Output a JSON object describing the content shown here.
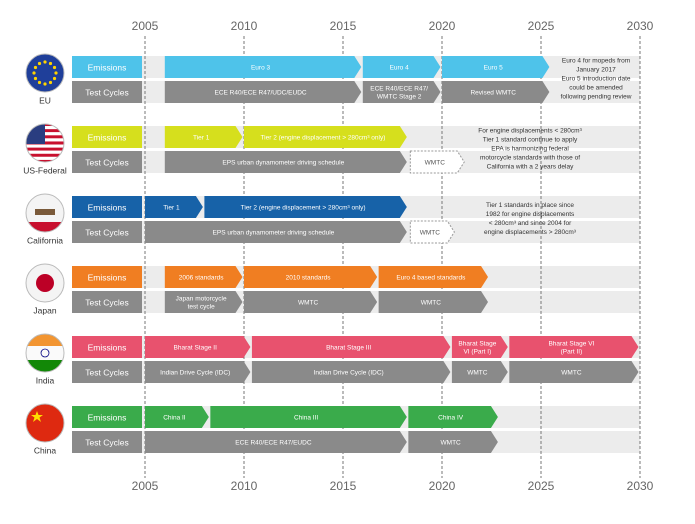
{
  "axis": {
    "xticks": [
      2005,
      2010,
      2015,
      2020,
      2025,
      2030
    ]
  },
  "regions": [
    {
      "name": "EU",
      "rows": [
        {
          "label": "Emissions",
          "color": "#4ec3ea",
          "bars": [
            {
              "label": [
                "Euro 3"
              ],
              "start": 2006,
              "end": 2016
            },
            {
              "label": [
                "Euro 4"
              ],
              "start": 2016,
              "end": 2020
            },
            {
              "label": [
                "Euro 5"
              ],
              "start": 2020,
              "end": 2025.5
            }
          ]
        },
        {
          "label": "Test Cycles",
          "color": "#8a8a8a",
          "bars": [
            {
              "label": [
                "ECE R40/ECE R47/UDC/EUDC"
              ],
              "start": 2006,
              "end": 2016
            },
            {
              "label": [
                "ECE R40/ECE R47/",
                "WMTC Stage 2"
              ],
              "start": 2016,
              "end": 2020
            },
            {
              "label": [
                "Revised WMTC"
              ],
              "start": 2020,
              "end": 2025.5
            }
          ]
        }
      ],
      "note": [
        "Euro 4 for mopeds from",
        "January 2017",
        "Euro 5 introduction date",
        "could be amended",
        "following pending review"
      ]
    },
    {
      "name": "US-Federal",
      "rows": [
        {
          "label": "Emissions",
          "color": "#d6df1d",
          "bars": [
            {
              "label": [
                "Tier 1"
              ],
              "start": 2006,
              "end": 2010
            },
            {
              "label": [
                "Tier 2 (engine displacement > 280cm³ only)"
              ],
              "start": 2010,
              "end": 2018.3
            }
          ]
        },
        {
          "label": "Test Cycles",
          "color": "#8a8a8a",
          "bars": [
            {
              "label": [
                "EPS urban dynamometer driving schedule"
              ],
              "start": 2006,
              "end": 2018.3
            },
            {
              "label": [
                "WMTC"
              ],
              "start": 2018.4,
              "end": 2021.2,
              "dashed": true
            }
          ]
        }
      ],
      "note": [
        "For engine displacements < 280cm³",
        "Tier 1 standard continue to apply",
        "EPA is harmonizing federal",
        "motorcycle standards with those of",
        "California with a 2 years delay"
      ]
    },
    {
      "name": "California",
      "rows": [
        {
          "label": "Emissions",
          "color": "#1762a8",
          "bars": [
            {
              "label": [
                "Tier 1"
              ],
              "start": 2005,
              "end": 2008
            },
            {
              "label": [
                "Tier 2 (engine displacement > 280cm³ only)"
              ],
              "start": 2008,
              "end": 2018.3
            }
          ]
        },
        {
          "label": "Test Cycles",
          "color": "#8a8a8a",
          "bars": [
            {
              "label": [
                "EPS urban dynamometer driving schedule"
              ],
              "start": 2005,
              "end": 2018.3
            },
            {
              "label": [
                "WMTC"
              ],
              "start": 2018.4,
              "end": 2020.7,
              "dashed": true
            }
          ]
        }
      ],
      "note": [
        "Tier 1 standards in place since",
        "1982 for engine displacements",
        "< 280cm³ and since 2004 for",
        "engine displacements > 280cm³"
      ]
    },
    {
      "name": "Japan",
      "rows": [
        {
          "label": "Emissions",
          "color": "#f07e22",
          "bars": [
            {
              "label": [
                "2006 standards"
              ],
              "start": 2006,
              "end": 2010
            },
            {
              "label": [
                "2010 standards"
              ],
              "start": 2010,
              "end": 2016.8
            },
            {
              "label": [
                "Euro 4 based standards"
              ],
              "start": 2016.8,
              "end": 2022.4
            }
          ]
        },
        {
          "label": "Test Cycles",
          "color": "#8a8a8a",
          "bars": [
            {
              "label": [
                "Japan motorcycle",
                "test cycle"
              ],
              "start": 2006,
              "end": 2010
            },
            {
              "label": [
                "WMTC"
              ],
              "start": 2010,
              "end": 2016.8
            },
            {
              "label": [
                "WMTC"
              ],
              "start": 2016.8,
              "end": 2022.4
            }
          ]
        }
      ]
    },
    {
      "name": "India",
      "rows": [
        {
          "label": "Emissions",
          "color": "#e8526e",
          "bars": [
            {
              "label": [
                "Bharat Stage II"
              ],
              "start": 2005,
              "end": 2010.4
            },
            {
              "label": [
                "Bharat Stage III"
              ],
              "start": 2010.4,
              "end": 2020.5
            },
            {
              "label": [
                "Bharat Stage",
                "VI (Part I)"
              ],
              "start": 2020.5,
              "end": 2023.4
            },
            {
              "label": [
                "Bharat Stage VI",
                "(Part II)"
              ],
              "start": 2023.4,
              "end": 2030
            }
          ]
        },
        {
          "label": "Test Cycles",
          "color": "#8a8a8a",
          "bars": [
            {
              "label": [
                "Indian Drive Cycle (IDC)"
              ],
              "start": 2005,
              "end": 2010.4
            },
            {
              "label": [
                "Indian Drive Cycle (IDC)"
              ],
              "start": 2010.4,
              "end": 2020.5
            },
            {
              "label": [
                "WMTC"
              ],
              "start": 2020.5,
              "end": 2023.4
            },
            {
              "label": [
                "WMTC"
              ],
              "start": 2023.4,
              "end": 2030
            }
          ]
        }
      ]
    },
    {
      "name": "China",
      "rows": [
        {
          "label": "Emissions",
          "color": "#3aab4b",
          "bars": [
            {
              "label": [
                "China II"
              ],
              "start": 2005,
              "end": 2008.3
            },
            {
              "label": [
                "China III"
              ],
              "start": 2008.3,
              "end": 2018.3
            },
            {
              "label": [
                "China IV"
              ],
              "start": 2018.3,
              "end": 2022.9
            }
          ]
        },
        {
          "label": "Test Cycles",
          "color": "#8a8a8a",
          "bars": [
            {
              "label": [
                "ECE R40/ECE R47/EUDC"
              ],
              "start": 2005,
              "end": 2018.3
            },
            {
              "label": [
                "WMTC"
              ],
              "start": 2018.3,
              "end": 2022.9
            }
          ]
        }
      ]
    }
  ]
}
